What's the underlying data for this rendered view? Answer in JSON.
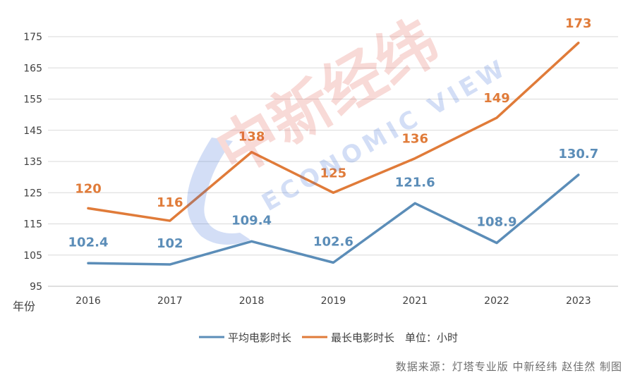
{
  "chart_data": {
    "type": "line",
    "categories": [
      "2016",
      "2017",
      "2018",
      "2019",
      "2021",
      "2022",
      "2023"
    ],
    "y_ticks": [
      95,
      105,
      115,
      125,
      135,
      145,
      155,
      165,
      175
    ],
    "ylim": [
      95,
      175
    ],
    "xlabel": "年份",
    "ylabel": "",
    "grid": true,
    "legend_position": "bottom",
    "series": [
      {
        "name": "平均电影时长",
        "values": [
          102.4,
          102,
          109.4,
          102.6,
          121.6,
          108.9,
          130.7
        ],
        "labels": [
          "102.4",
          "102",
          "109.4",
          "102.6",
          "121.6",
          "108.9",
          "130.7"
        ],
        "color": "#5b8db8"
      },
      {
        "name": "最长电影时长",
        "values": [
          120,
          116,
          138,
          125,
          136,
          149,
          173
        ],
        "labels": [
          "120",
          "116",
          "138",
          "125",
          "136",
          "149",
          "173"
        ],
        "color": "#e07b39"
      }
    ],
    "unit_note": "单位：小时"
  },
  "watermark": {
    "brand": "中新经纬",
    "tagline": "ECONOMIC VIEW"
  },
  "footer": {
    "source": "数据来源：灯塔专业版  中新经纬  赵佳然  制图"
  }
}
